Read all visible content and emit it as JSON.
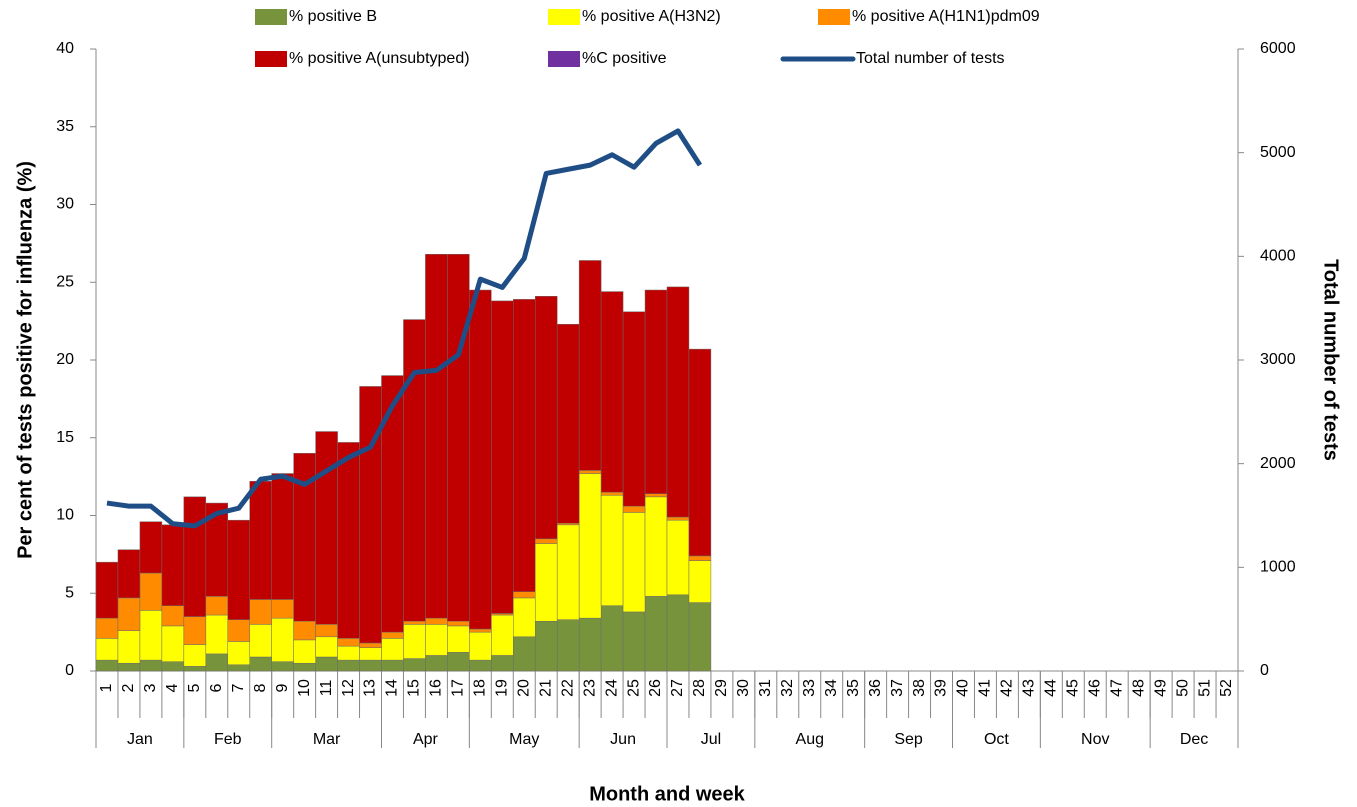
{
  "chart_data": {
    "type": "stacked_bar_line",
    "ylabel": "Per cent of tests positive for influenza (%)",
    "y2label": "Total number of tests",
    "xlabel": "Month and week",
    "categories": [
      "1",
      "2",
      "3",
      "4",
      "5",
      "6",
      "7",
      "8",
      "9",
      "10",
      "11",
      "12",
      "13",
      "14",
      "15",
      "16",
      "17",
      "18",
      "19",
      "20",
      "21",
      "22",
      "23",
      "24",
      "25",
      "26",
      "27",
      "28",
      "29",
      "30",
      "31",
      "32",
      "33",
      "34",
      "35",
      "36",
      "37",
      "38",
      "39",
      "40",
      "41",
      "42",
      "43",
      "44",
      "45",
      "46",
      "47",
      "48",
      "49",
      "50",
      "51",
      "52"
    ],
    "months": [
      {
        "label": "Jan",
        "span": 4
      },
      {
        "label": "Feb",
        "span": 4
      },
      {
        "label": "Mar",
        "span": 5
      },
      {
        "label": "Apr",
        "span": 4
      },
      {
        "label": "May",
        "span": 5
      },
      {
        "label": "Jun",
        "span": 4
      },
      {
        "label": "Jul",
        "span": 4
      },
      {
        "label": "Aug",
        "span": 5
      },
      {
        "label": "Sep",
        "span": 4
      },
      {
        "label": "Oct",
        "span": 4
      },
      {
        "label": "Nov",
        "span": 5
      },
      {
        "label": "Dec",
        "span": 4
      }
    ],
    "ylim": [
      0,
      40
    ],
    "yticks": [
      0,
      5,
      10,
      15,
      20,
      25,
      30,
      35,
      40
    ],
    "y2lim": [
      0,
      6000
    ],
    "y2ticks": [
      0,
      1000,
      2000,
      3000,
      4000,
      5000,
      6000
    ],
    "series": [
      {
        "name": "% positive B",
        "color": "#77933c",
        "type": "bar",
        "values": [
          0.7,
          0.5,
          0.7,
          0.6,
          0.3,
          1.1,
          0.4,
          0.9,
          0.6,
          0.5,
          0.9,
          0.7,
          0.7,
          0.7,
          0.8,
          1.0,
          1.2,
          0.7,
          1.0,
          2.2,
          3.2,
          3.3,
          3.4,
          4.2,
          3.8,
          4.8,
          4.9,
          4.4,
          null,
          null,
          null,
          null,
          null,
          null,
          null,
          null,
          null,
          null,
          null,
          null,
          null,
          null,
          null,
          null,
          null,
          null,
          null,
          null,
          null,
          null,
          null,
          null
        ]
      },
      {
        "name": "% positive A(H3N2)",
        "color": "#ffff00",
        "type": "bar",
        "values": [
          1.4,
          2.1,
          3.2,
          2.3,
          1.4,
          2.5,
          1.5,
          2.1,
          2.8,
          1.5,
          1.3,
          0.9,
          0.8,
          1.4,
          2.2,
          2.0,
          1.7,
          1.8,
          2.6,
          2.5,
          5.0,
          6.1,
          9.3,
          7.1,
          6.4,
          6.4,
          4.8,
          2.7,
          null,
          null,
          null,
          null,
          null,
          null,
          null,
          null,
          null,
          null,
          null,
          null,
          null,
          null,
          null,
          null,
          null,
          null,
          null,
          null,
          null,
          null,
          null,
          null
        ]
      },
      {
        "name": "% positive A(H1N1)pdm09",
        "color": "#ff8c00",
        "type": "bar",
        "values": [
          1.3,
          2.1,
          2.4,
          1.3,
          1.8,
          1.2,
          1.4,
          1.6,
          1.2,
          1.2,
          0.8,
          0.5,
          0.3,
          0.4,
          0.2,
          0.4,
          0.3,
          0.2,
          0.1,
          0.4,
          0.3,
          0.1,
          0.2,
          0.2,
          0.4,
          0.2,
          0.2,
          0.3,
          null,
          null,
          null,
          null,
          null,
          null,
          null,
          null,
          null,
          null,
          null,
          null,
          null,
          null,
          null,
          null,
          null,
          null,
          null,
          null,
          null,
          null,
          null,
          null
        ]
      },
      {
        "name": "% positive A(unsubtyped)",
        "color": "#c00000",
        "type": "bar",
        "values": [
          3.6,
          3.1,
          3.3,
          5.2,
          7.7,
          6.0,
          6.4,
          7.6,
          8.1,
          10.8,
          12.4,
          12.6,
          16.5,
          16.5,
          19.4,
          23.4,
          23.6,
          21.8,
          20.1,
          18.8,
          15.6,
          12.8,
          13.5,
          12.9,
          12.5,
          13.1,
          14.8,
          13.3,
          null,
          null,
          null,
          null,
          null,
          null,
          null,
          null,
          null,
          null,
          null,
          null,
          null,
          null,
          null,
          null,
          null,
          null,
          null,
          null,
          null,
          null,
          null,
          null
        ]
      },
      {
        "name": "%C positive",
        "color": "#7030a0",
        "type": "bar",
        "values": [
          0,
          0,
          0,
          0,
          0,
          0,
          0,
          0,
          0,
          0,
          0,
          0,
          0,
          0,
          0,
          0,
          0,
          0,
          0,
          0,
          0,
          0,
          0,
          0,
          0,
          0,
          0,
          0,
          null,
          null,
          null,
          null,
          null,
          null,
          null,
          null,
          null,
          null,
          null,
          null,
          null,
          null,
          null,
          null,
          null,
          null,
          null,
          null,
          null,
          null,
          null,
          null
        ]
      },
      {
        "name": "Total number of tests",
        "color": "#1f4e86",
        "type": "line",
        "axis": "y2",
        "values": [
          1620,
          1590,
          1590,
          1420,
          1400,
          1520,
          1570,
          1850,
          1880,
          1800,
          1930,
          2060,
          2160,
          2560,
          2880,
          2900,
          3050,
          3780,
          3700,
          3980,
          4800,
          4840,
          4880,
          4980,
          4860,
          5090,
          5210,
          4880,
          null,
          null,
          null,
          null,
          null,
          null,
          null,
          null,
          null,
          null,
          null,
          null,
          null,
          null,
          null,
          null,
          null,
          null,
          null,
          null,
          null,
          null,
          null,
          null
        ]
      }
    ]
  }
}
